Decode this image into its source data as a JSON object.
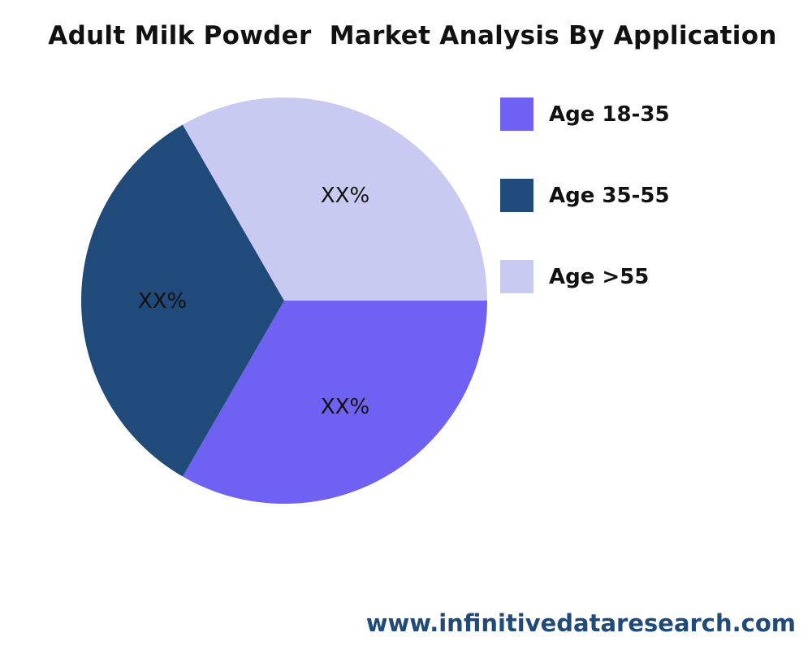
{
  "chart_data": {
    "type": "pie",
    "title": "Adult Milk Powder  Market Analysis By Application",
    "categories": [
      "Age 18-35",
      "Age 35-55",
      "Age >55"
    ],
    "values": [
      33.33,
      33.33,
      33.33
    ],
    "data_labels": [
      "XX%",
      "XX%",
      "XX%"
    ],
    "colors": [
      "#6f62f2",
      "#1f4a79",
      "#c8caf1"
    ],
    "legend_position": "right"
  },
  "footer": {
    "website": "www.infinitivedataresearch.com"
  }
}
